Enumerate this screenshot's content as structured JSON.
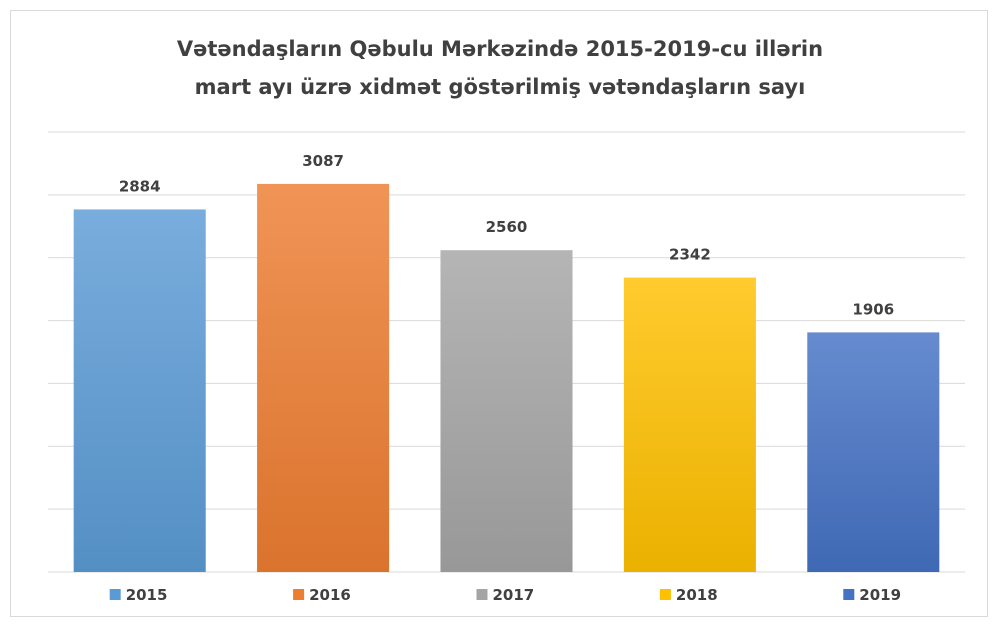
{
  "chart_data": {
    "type": "bar",
    "title_line1": "Vətəndaşların Qəbulu Mərkəzində 2015-2019-cu illərin",
    "title_line2": "mart ayı üzrə xidmət göstərilmiş vətəndaşların sayı",
    "categories": [
      "2015",
      "2016",
      "2017",
      "2018",
      "2019"
    ],
    "values": [
      2884,
      3087,
      2560,
      2342,
      1906
    ],
    "colors": [
      "#5b9bd5",
      "#ed7d31",
      "#a5a5a5",
      "#ffc000",
      "#4472c4"
    ],
    "ylim": [
      0,
      3500
    ],
    "grid": true,
    "legend": "bottom",
    "data_labels": true
  }
}
